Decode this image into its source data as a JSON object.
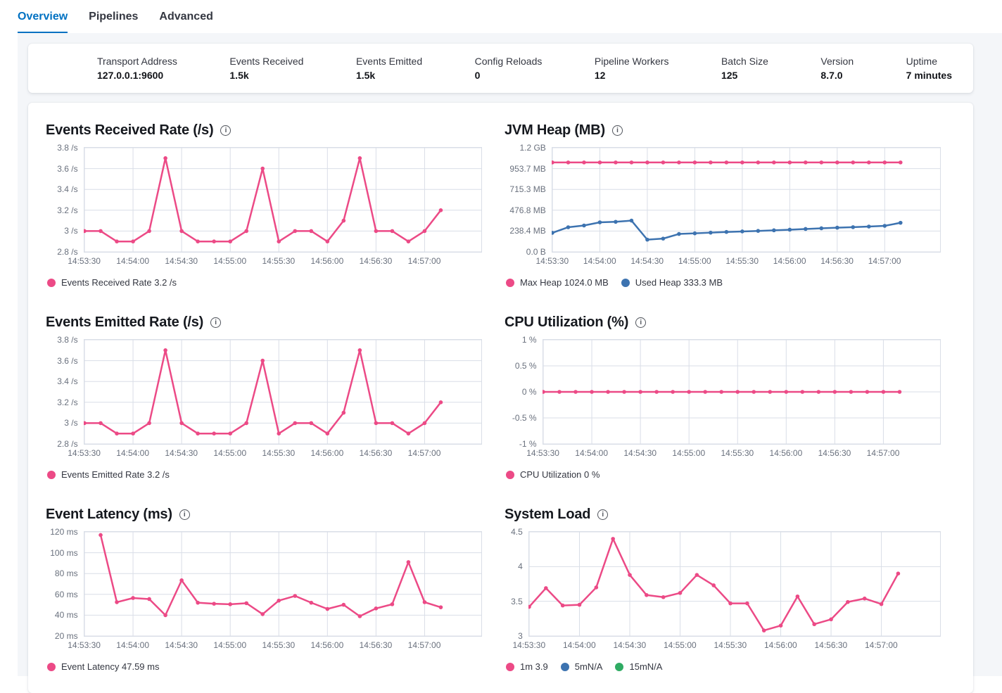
{
  "tabs": [
    {
      "label": "Overview",
      "active": true
    },
    {
      "label": "Pipelines",
      "active": false
    },
    {
      "label": "Advanced",
      "active": false
    }
  ],
  "stats": [
    {
      "label": "Transport Address",
      "value": "127.0.0.1:9600"
    },
    {
      "label": "Events Received",
      "value": "1.5k"
    },
    {
      "label": "Events Emitted",
      "value": "1.5k"
    },
    {
      "label": "Config Reloads",
      "value": "0"
    },
    {
      "label": "Pipeline Workers",
      "value": "12"
    },
    {
      "label": "Batch Size",
      "value": "125"
    },
    {
      "label": "Version",
      "value": "8.7.0"
    },
    {
      "label": "Uptime",
      "value": "7 minutes"
    }
  ],
  "colors": {
    "accent": "#0071c2",
    "pink": "#ec4a86",
    "blue": "#3d73b0",
    "green": "#2fab63",
    "grid": "#d9dee7",
    "axis_text": "#69707d"
  },
  "x_times": [
    "14:53:30",
    "14:53:40",
    "14:53:50",
    "14:54:00",
    "14:54:10",
    "14:54:20",
    "14:54:30",
    "14:54:40",
    "14:54:50",
    "14:55:00",
    "14:55:10",
    "14:55:20",
    "14:55:30",
    "14:55:40",
    "14:55:50",
    "14:56:00",
    "14:56:10",
    "14:56:20",
    "14:56:30",
    "14:56:40",
    "14:56:50",
    "14:57:00",
    "14:57:10"
  ],
  "x_tick_indices": [
    0,
    3,
    6,
    9,
    12,
    15,
    18,
    21
  ],
  "chart_data": [
    {
      "type": "line",
      "title": "Events Received Rate (/s)",
      "ymin": 2.8,
      "ymax": 3.8,
      "y_ticks": [
        {
          "label": "3.8 /s",
          "value": 3.8
        },
        {
          "label": "3.6 /s",
          "value": 3.6
        },
        {
          "label": "3.4 /s",
          "value": 3.4
        },
        {
          "label": "3.2 /s",
          "value": 3.2
        },
        {
          "label": "3 /s",
          "value": 3.0
        },
        {
          "label": "2.8 /s",
          "value": 2.8
        }
      ],
      "series": [
        {
          "name": "Events Received Rate",
          "color": "pink",
          "values": [
            3,
            3,
            2.9,
            2.9,
            3,
            3.7,
            3,
            2.9,
            2.9,
            2.9,
            3,
            3.6,
            2.9,
            3,
            3,
            2.9,
            3.1,
            3.7,
            3,
            3,
            2.9,
            3,
            3.2
          ]
        }
      ],
      "legend": [
        {
          "color": "pink",
          "label": "Events Received Rate 3.2 /s"
        }
      ]
    },
    {
      "type": "line",
      "title": "JVM Heap (MB)",
      "ymin": 0,
      "ymax": 1192.1,
      "y_ticks": [
        {
          "label": "1.2 GB",
          "value": 1192.1
        },
        {
          "label": "953.7 MB",
          "value": 953.7
        },
        {
          "label": "715.3 MB",
          "value": 715.3
        },
        {
          "label": "476.8 MB",
          "value": 476.8
        },
        {
          "label": "238.4 MB",
          "value": 238.4
        },
        {
          "label": "0.0 B",
          "value": 0
        }
      ],
      "series": [
        {
          "name": "Max Heap",
          "color": "pink",
          "values": [
            1024,
            1024,
            1024,
            1024,
            1024,
            1024,
            1024,
            1024,
            1024,
            1024,
            1024,
            1024,
            1024,
            1024,
            1024,
            1024,
            1024,
            1024,
            1024,
            1024,
            1024,
            1024,
            1024
          ]
        },
        {
          "name": "Used Heap",
          "color": "blue",
          "values": [
            218,
            282,
            302,
            338,
            344,
            358,
            140,
            152,
            205,
            212,
            220,
            228,
            234,
            240,
            247,
            254,
            262,
            270,
            277,
            283,
            290,
            298,
            333
          ]
        }
      ],
      "legend": [
        {
          "color": "pink",
          "label": "Max Heap 1024.0 MB"
        },
        {
          "color": "blue",
          "label": "Used Heap 333.3 MB"
        }
      ]
    },
    {
      "type": "line",
      "title": "Events Emitted Rate (/s)",
      "ymin": 2.8,
      "ymax": 3.8,
      "y_ticks": [
        {
          "label": "3.8 /s",
          "value": 3.8
        },
        {
          "label": "3.6 /s",
          "value": 3.6
        },
        {
          "label": "3.4 /s",
          "value": 3.4
        },
        {
          "label": "3.2 /s",
          "value": 3.2
        },
        {
          "label": "3 /s",
          "value": 3.0
        },
        {
          "label": "2.8 /s",
          "value": 2.8
        }
      ],
      "series": [
        {
          "name": "Events Emitted Rate",
          "color": "pink",
          "values": [
            3,
            3,
            2.9,
            2.9,
            3,
            3.7,
            3,
            2.9,
            2.9,
            2.9,
            3,
            3.6,
            2.9,
            3,
            3,
            2.9,
            3.1,
            3.7,
            3,
            3,
            2.9,
            3,
            3.2
          ]
        }
      ],
      "legend": [
        {
          "color": "pink",
          "label": "Events Emitted Rate 3.2 /s"
        }
      ]
    },
    {
      "type": "line",
      "title": "CPU Utilization (%)",
      "ymin": -1,
      "ymax": 1,
      "y_ticks": [
        {
          "label": "1 %",
          "value": 1
        },
        {
          "label": "0.5 %",
          "value": 0.5
        },
        {
          "label": "0 %",
          "value": 0
        },
        {
          "label": "-0.5 %",
          "value": -0.5
        },
        {
          "label": "-1 %",
          "value": -1
        }
      ],
      "series": [
        {
          "name": "CPU Utilization",
          "color": "pink",
          "values": [
            0,
            0,
            0,
            0,
            0,
            0,
            0,
            0,
            0,
            0,
            0,
            0,
            0,
            0,
            0,
            0,
            0,
            0,
            0,
            0,
            0,
            0,
            0
          ]
        }
      ],
      "legend": [
        {
          "color": "pink",
          "label": "CPU Utilization 0 %"
        }
      ]
    },
    {
      "type": "line",
      "title": "Event Latency (ms)",
      "ymin": 20,
      "ymax": 120,
      "y_ticks": [
        {
          "label": "120 ms",
          "value": 120
        },
        {
          "label": "100 ms",
          "value": 100
        },
        {
          "label": "80 ms",
          "value": 80
        },
        {
          "label": "60 ms",
          "value": 60
        },
        {
          "label": "40 ms",
          "value": 40
        },
        {
          "label": "20 ms",
          "value": 20
        }
      ],
      "series": [
        {
          "name": "Event Latency",
          "color": "pink",
          "values": [
            null,
            117,
            52.5,
            56.5,
            55.5,
            40,
            73.5,
            52,
            51,
            50.5,
            51.5,
            41,
            54,
            58.5,
            52,
            46,
            50,
            39,
            46.5,
            50.5,
            91,
            52.5,
            47.59
          ]
        }
      ],
      "legend": [
        {
          "color": "pink",
          "label": "Event Latency 47.59 ms"
        }
      ]
    },
    {
      "type": "line",
      "title": "System Load",
      "ymin": 3,
      "ymax": 4.5,
      "y_ticks": [
        {
          "label": "4.5",
          "value": 4.5
        },
        {
          "label": "4",
          "value": 4
        },
        {
          "label": "3.5",
          "value": 3.5
        },
        {
          "label": "3",
          "value": 3
        }
      ],
      "series": [
        {
          "name": "1m",
          "color": "pink",
          "values": [
            3.42,
            3.69,
            3.44,
            3.45,
            3.7,
            4.4,
            3.88,
            3.59,
            3.56,
            3.62,
            3.88,
            3.73,
            3.47,
            3.47,
            3.08,
            3.15,
            3.57,
            3.17,
            3.24,
            3.49,
            3.54,
            3.46,
            3.9
          ]
        }
      ],
      "legend": [
        {
          "color": "pink",
          "label": "1m 3.9"
        },
        {
          "color": "blue",
          "label": "5mN/A"
        },
        {
          "color": "green",
          "label": "15mN/A"
        }
      ]
    }
  ]
}
